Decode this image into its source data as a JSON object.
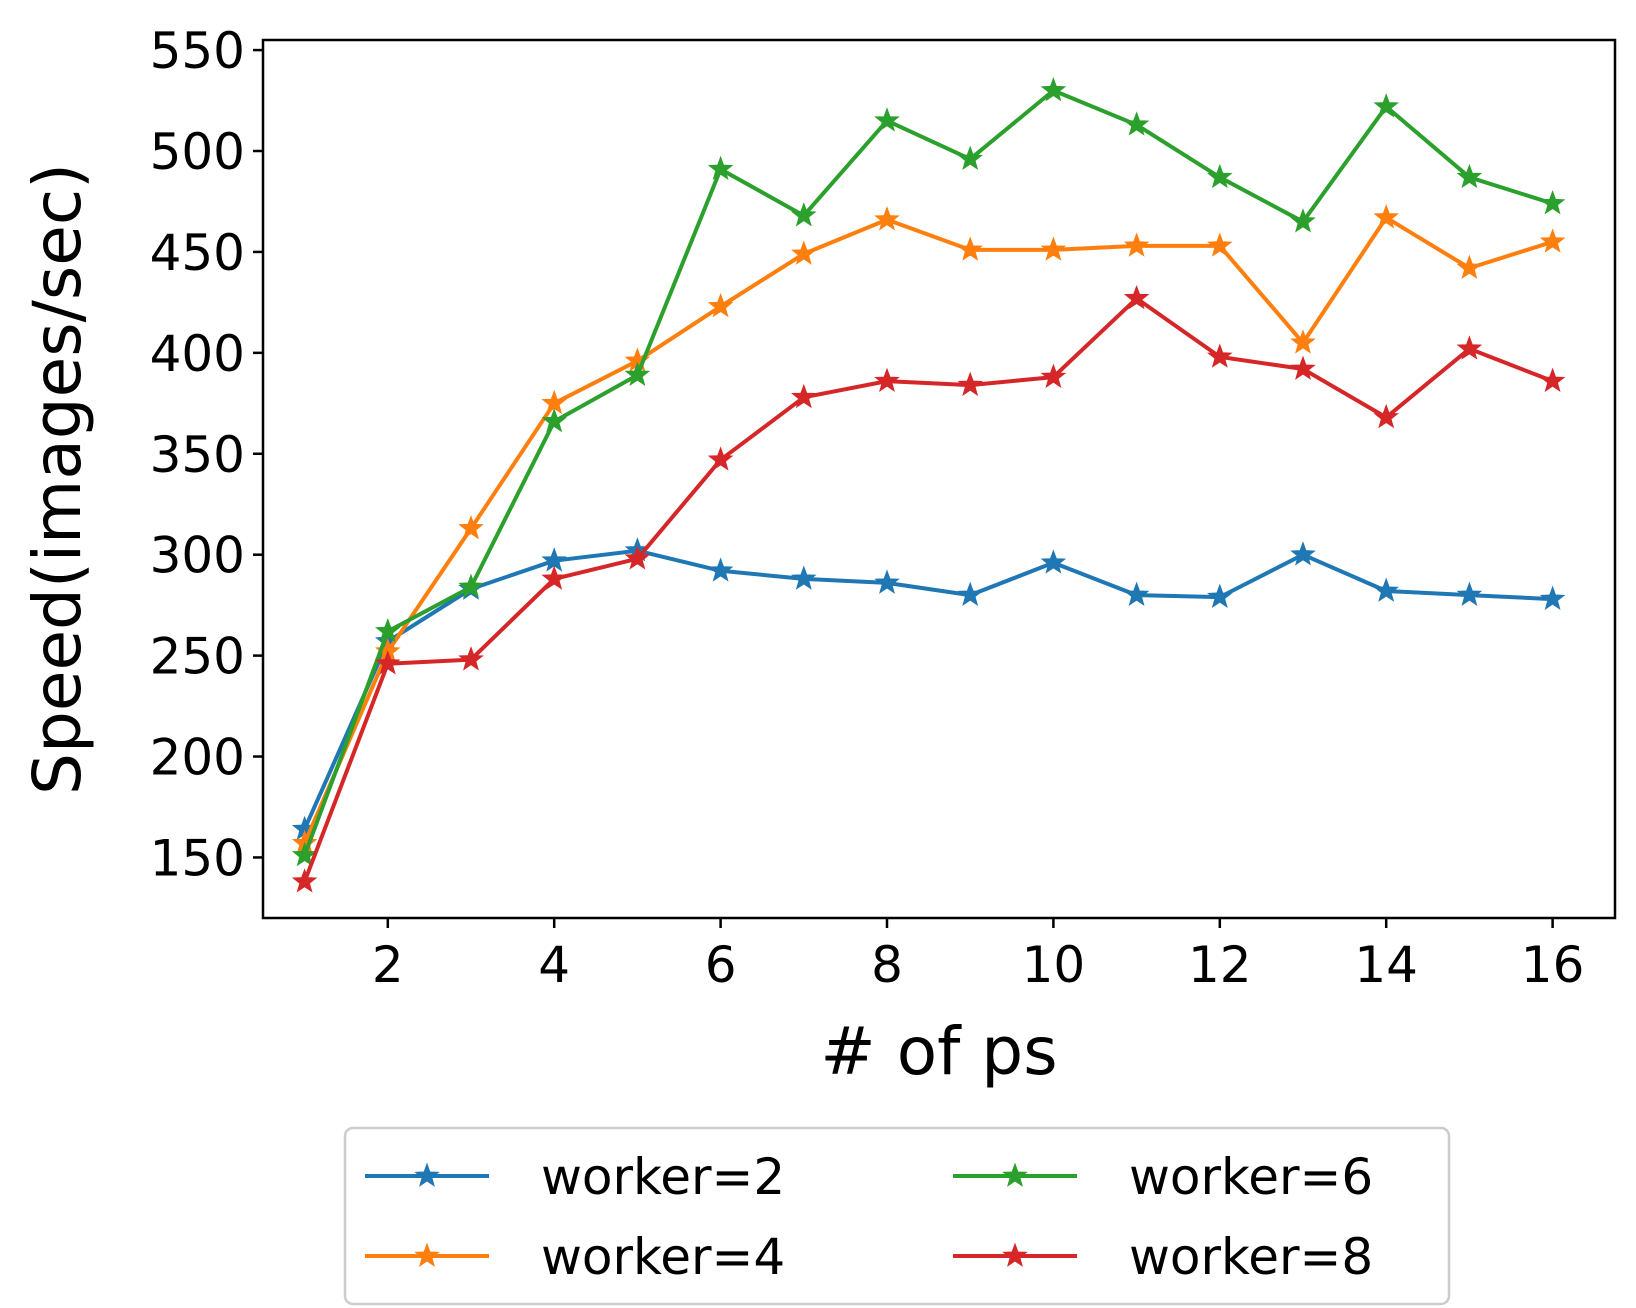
{
  "chart_data": {
    "type": "line",
    "title": "",
    "xlabel": "# of ps",
    "ylabel": "Speed(images/sec)",
    "x": [
      1,
      2,
      3,
      4,
      5,
      6,
      7,
      8,
      9,
      10,
      11,
      12,
      13,
      14,
      15,
      16
    ],
    "xlim": [
      0.5,
      16.75
    ],
    "ylim": [
      120,
      555
    ],
    "xticks": [
      2,
      4,
      6,
      8,
      10,
      12,
      14,
      16
    ],
    "yticks": [
      150,
      200,
      250,
      300,
      350,
      400,
      450,
      500,
      550
    ],
    "grid": false,
    "legend": {
      "placement": "below",
      "columns": 2
    },
    "marker": "star",
    "series": [
      {
        "name": "worker=2",
        "color": "#1f77b4",
        "values": [
          164,
          257,
          283,
          297,
          302,
          292,
          288,
          286,
          280,
          296,
          280,
          279,
          300,
          282,
          280,
          278
        ]
      },
      {
        "name": "worker=4",
        "color": "#ff7f0e",
        "values": [
          157,
          252,
          313,
          375,
          396,
          423,
          449,
          466,
          451,
          451,
          453,
          453,
          405,
          467,
          442,
          455
        ]
      },
      {
        "name": "worker=6",
        "color": "#2ca02c",
        "values": [
          151,
          262,
          284,
          366,
          389,
          491,
          468,
          515,
          496,
          530,
          513,
          487,
          465,
          522,
          487,
          474
        ]
      },
      {
        "name": "worker=8",
        "color": "#d62728",
        "values": [
          138,
          246,
          248,
          288,
          298,
          347,
          378,
          386,
          384,
          388,
          427,
          398,
          392,
          368,
          402,
          386
        ]
      }
    ]
  }
}
